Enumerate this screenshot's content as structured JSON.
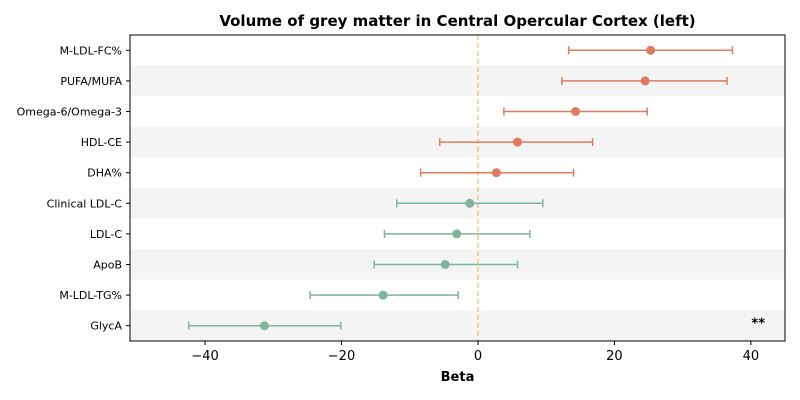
{
  "chart_data": {
    "type": "forest",
    "title": "Volume of grey matter in Central Opercular Cortex (left)",
    "xlabel": "Beta",
    "xlim": [
      -51,
      45
    ],
    "xticks": [
      -40,
      -20,
      0,
      20,
      40
    ],
    "xtick_labels": [
      "−40",
      "−20",
      "0",
      "20",
      "40"
    ],
    "reference_line": 0,
    "grid": false,
    "row_striping": true,
    "colors": {
      "positive": "#E07B5F",
      "negative": "#7FB59B",
      "reference": "#F0C987",
      "stripe": "#F4F4F4"
    },
    "rows": [
      {
        "label": "M-LDL-FC%",
        "beta": 25.3,
        "ci_low": 13.3,
        "ci_high": 37.3,
        "annotation": ""
      },
      {
        "label": "PUFA/MUFA",
        "beta": 24.5,
        "ci_low": 12.3,
        "ci_high": 36.5,
        "annotation": ""
      },
      {
        "label": "Omega-6/Omega-3",
        "beta": 14.3,
        "ci_low": 3.8,
        "ci_high": 24.8,
        "annotation": ""
      },
      {
        "label": "HDL-CE",
        "beta": 5.8,
        "ci_low": -5.6,
        "ci_high": 16.8,
        "annotation": ""
      },
      {
        "label": "DHA%",
        "beta": 2.7,
        "ci_low": -8.4,
        "ci_high": 14.0,
        "annotation": ""
      },
      {
        "label": "Clinical LDL-C",
        "beta": -1.2,
        "ci_low": -11.9,
        "ci_high": 9.5,
        "annotation": ""
      },
      {
        "label": "LDL-C",
        "beta": -3.1,
        "ci_low": -13.7,
        "ci_high": 7.6,
        "annotation": ""
      },
      {
        "label": "ApoB",
        "beta": -4.8,
        "ci_low": -15.2,
        "ci_high": 5.8,
        "annotation": ""
      },
      {
        "label": "M-LDL-TG%",
        "beta": -13.9,
        "ci_low": -24.6,
        "ci_high": -2.9,
        "annotation": ""
      },
      {
        "label": "GlycA",
        "beta": -31.3,
        "ci_low": -42.4,
        "ci_high": -20.1,
        "annotation": "**"
      }
    ]
  }
}
